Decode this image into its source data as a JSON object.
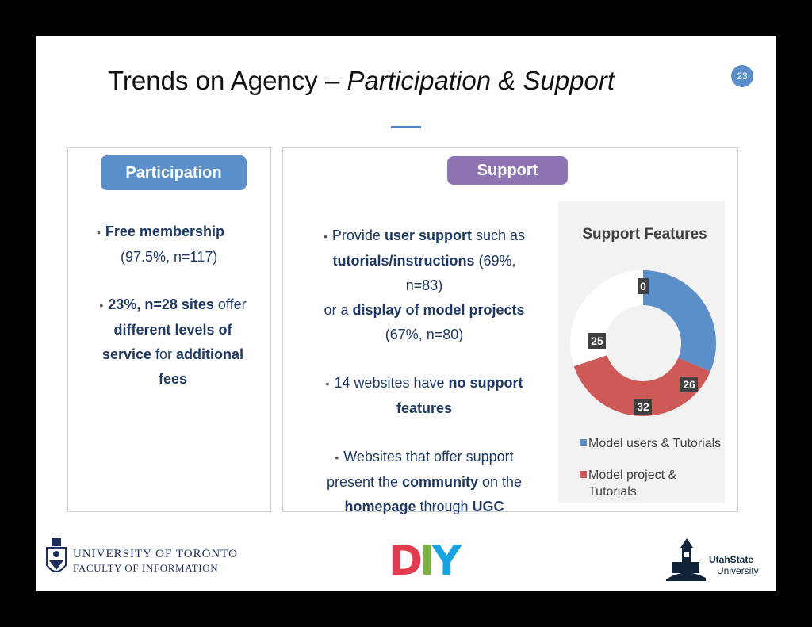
{
  "title": {
    "main": "Trends on Agency – ",
    "italic": "Participation & Support"
  },
  "page_number": "23",
  "participation": {
    "heading": "Participation",
    "bullet1": {
      "bold": "Free membership",
      "line2": "(97.5%, n=117)"
    },
    "bullet2": {
      "bold1": "23%, n=28 sites",
      "text1": " offer",
      "bold2": "different levels of",
      "bold3": "service",
      "text2": " for ",
      "bold4": "additional",
      "bold5": "fees"
    }
  },
  "support": {
    "heading": "Support",
    "bullet1": {
      "text1": "Provide ",
      "bold1": "user support",
      "text2": " such as",
      "bold2": "tutorials/instructions",
      "text3": " (69%,",
      "text4": "n=83)",
      "text5": "or a ",
      "bold3": "display of model projects",
      "text6": "(67%, n=80)"
    },
    "bullet2": {
      "text1": "14 websites have ",
      "bold1": "no support",
      "bold2": "features"
    },
    "bullet3": {
      "text1": "Websites that offer support",
      "text2": "present the ",
      "bold1": "community",
      "text3": " on the",
      "bold2": "homepage",
      "text4": " through ",
      "bold3": "UGC"
    }
  },
  "chart_data": {
    "type": "donut",
    "title": "Support Features",
    "series": [
      {
        "name": "Model users & Tutorials",
        "value": 26,
        "color": "#5b8fc9"
      },
      {
        "name": "Model project & Tutorials",
        "value": 32,
        "color": "#cd5a56"
      },
      {
        "name": "",
        "value": 25,
        "color": "#ffffff"
      },
      {
        "name": "",
        "value": 0,
        "color": "#8064a2"
      }
    ],
    "data_labels": [
      "26",
      "32",
      "25",
      "0"
    ],
    "legend": "bottom"
  },
  "logos": {
    "uoft_line1": "UNIVERSITY OF TORONTO",
    "uoft_line2": "FACULTY OF INFORMATION",
    "diy": {
      "d": "D",
      "i": "I",
      "y": "Y"
    },
    "usu_line1": "UtahState",
    "usu_line2": "University"
  }
}
